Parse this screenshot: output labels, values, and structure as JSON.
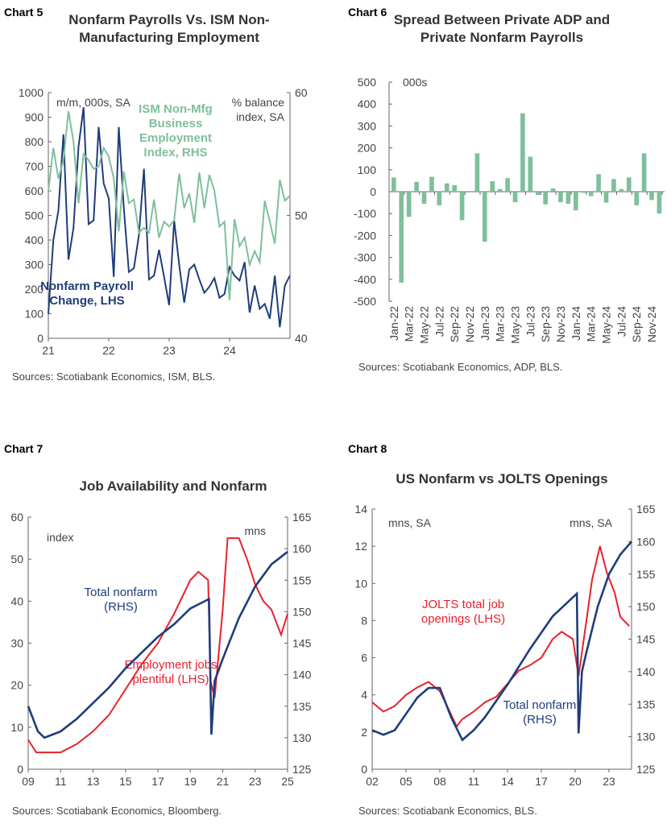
{
  "colors": {
    "navy": "#1f3d7a",
    "green": "#7fbf9a",
    "red": "#e8212b"
  },
  "chart_data": [
    {
      "id": "chart5",
      "label": "Chart 5",
      "type": "line",
      "title": [
        "Nonfarm Payrolls Vs. ISM Non-",
        "Manufacturing Employment"
      ],
      "left_unit": "m/m, 000s, SA",
      "right_unit": [
        "% balance",
        "index, SA"
      ],
      "ylim_left": [
        0,
        1000
      ],
      "yticks_left": [
        0,
        100,
        200,
        300,
        400,
        500,
        600,
        700,
        800,
        900,
        1000
      ],
      "ylim_right": [
        40,
        60
      ],
      "yticks_right": [
        40,
        50,
        60
      ],
      "xticks": [
        "21",
        "22",
        "23",
        "24"
      ],
      "xrange": [
        2021,
        2025
      ],
      "series": [
        {
          "name": "Nonfarm Payroll Change, LHS",
          "label": [
            "Nonfarm Payroll",
            "Change, LHS"
          ],
          "axis": "left",
          "color": "#1f3d7a",
          "start": 2021,
          "step": 0.0833,
          "values": [
            100,
            400,
            520,
            830,
            320,
            450,
            780,
            940,
            465,
            480,
            860,
            630,
            570,
            250,
            860,
            530,
            270,
            285,
            420,
            690,
            240,
            255,
            360,
            250,
            135,
            480,
            300,
            145,
            280,
            300,
            240,
            185,
            210,
            245,
            165,
            180,
            290,
            255,
            235,
            310,
            105,
            215,
            120,
            140,
            80,
            255,
            45,
            215,
            255
          ]
        },
        {
          "name": "ISM Non-Mfg Business Employment Index, RHS",
          "label": [
            "ISM Non-Mfg",
            "Business",
            "Employment",
            "Index, RHS"
          ],
          "axis": "right",
          "color": "#7fbf9a",
          "start": 2021,
          "step": 0.0833,
          "values": [
            52,
            55.5,
            53,
            54.5,
            58.5,
            56,
            51,
            55,
            54.5,
            53.8,
            54,
            55.5,
            54.8,
            53,
            48.7,
            53.6,
            51,
            51.3,
            48.6,
            49,
            48.6,
            51.3,
            48.2,
            49.5,
            49.1,
            49.6,
            53.4,
            50.6,
            51.8,
            49.4,
            53.5,
            50.6,
            53.3,
            52,
            49.1,
            49.5,
            43.1,
            49.7,
            47.5,
            48.2,
            46,
            47.1,
            46.2,
            51.2,
            49.5,
            47.7,
            52.9,
            51.2,
            51.6
          ]
        }
      ],
      "source": "Sources: Scotiabank Economics, ISM, BLS."
    },
    {
      "id": "chart6",
      "label": "Chart 6",
      "type": "bar",
      "title": [
        "Spread Between Private ADP and",
        "Private Nonfarm Payrolls"
      ],
      "unit": "000s",
      "ylim": [
        -500,
        500
      ],
      "yticks": [
        -500,
        -400,
        -300,
        -200,
        -100,
        0,
        100,
        200,
        300,
        400,
        500
      ],
      "categories": [
        "Jan-22",
        "Feb-22",
        "Mar-22",
        "Apr-22",
        "May-22",
        "Jun-22",
        "Jul-22",
        "Aug-22",
        "Sep-22",
        "Oct-22",
        "Nov-22",
        "Dec-22",
        "Jan-23",
        "Feb-23",
        "Mar-23",
        "Apr-23",
        "May-23",
        "Jun-23",
        "Jul-23",
        "Aug-23",
        "Sep-23",
        "Oct-23",
        "Nov-23",
        "Dec-23",
        "Jan-24",
        "Feb-24",
        "Mar-24",
        "Apr-24",
        "May-24",
        "Jun-24",
        "Jul-24",
        "Aug-24",
        "Sep-24",
        "Oct-24",
        "Nov-24",
        "Dec-24"
      ],
      "tick_labels": [
        "Jan-22",
        "Mar-22",
        "May-22",
        "Jul-22",
        "Sep-22",
        "Nov-22",
        "Jan-23",
        "Mar-23",
        "May-23",
        "Jul-23",
        "Sep-23",
        "Nov-23",
        "Jan-24",
        "Mar-24",
        "May-24",
        "Jul-24",
        "Sep-24",
        "Nov-24"
      ],
      "values": [
        65,
        -415,
        -115,
        45,
        -55,
        68,
        -62,
        38,
        30,
        -130,
        0,
        175,
        -228,
        48,
        12,
        62,
        -48,
        358,
        160,
        -15,
        -58,
        15,
        -48,
        -55,
        -85,
        -5,
        -20,
        80,
        -50,
        58,
        12,
        65,
        -62,
        175,
        -38,
        -100
      ],
      "color": "#7fbf9a",
      "source": "Sources: Scotiabank Economics, ADP, BLS."
    },
    {
      "id": "chart7",
      "label": "Chart 7",
      "type": "line",
      "title": [
        "Job Availability and Nonfarm"
      ],
      "left_unit": "index",
      "right_unit": [
        "mns"
      ],
      "ylim_left": [
        0,
        60
      ],
      "yticks_left": [
        0,
        10,
        20,
        30,
        40,
        50,
        60
      ],
      "ylim_right": [
        125,
        165
      ],
      "yticks_right": [
        125,
        130,
        135,
        140,
        145,
        150,
        155,
        160,
        165
      ],
      "xticks": [
        "09",
        "11",
        "13",
        "15",
        "17",
        "19",
        "21",
        "23",
        "25"
      ],
      "xrange": [
        2009,
        2025
      ],
      "series": [
        {
          "name": "Employment jobs plentiful (LHS)",
          "label": [
            "Employment jobs",
            "plentiful (LHS)"
          ],
          "axis": "left",
          "color": "#e8212b",
          "x": [
            2009,
            2009.5,
            2010,
            2011,
            2012,
            2013,
            2014,
            2015,
            2016,
            2017,
            2018,
            2019,
            2019.5,
            2020.1,
            2020.25,
            2020.5,
            2021,
            2021.3,
            2022,
            2022.5,
            2023,
            2023.5,
            2024,
            2024.6,
            2025
          ],
          "values": [
            7,
            4,
            4,
            4,
            6,
            9,
            13,
            19,
            25,
            30,
            37,
            45,
            47,
            45,
            21,
            17,
            38,
            55,
            55,
            50,
            44,
            40,
            38,
            32,
            37
          ]
        },
        {
          "name": "Total nonfarm (RHS)",
          "label": [
            "Total nonfarm",
            "(RHS)"
          ],
          "axis": "right",
          "color": "#1f3d7a",
          "x": [
            2009,
            2009.6,
            2010,
            2011,
            2012,
            2013,
            2014,
            2015,
            2016,
            2017,
            2018,
            2019,
            2020.15,
            2020.3,
            2020.5,
            2021,
            2022,
            2023,
            2024,
            2025
          ],
          "values": [
            135,
            131,
            130,
            131,
            133,
            135.5,
            138,
            141,
            143.5,
            146,
            148,
            150.5,
            152,
            130.5,
            139,
            142.5,
            149,
            154,
            157.5,
            159.5
          ]
        }
      ],
      "source": "Sources: Scotiabank Economics, Bloomberg."
    },
    {
      "id": "chart8",
      "label": "Chart 8",
      "type": "line",
      "title": [
        "US Nonfarm vs JOLTS Openings"
      ],
      "left_unit": "mns, SA",
      "right_unit": [
        "mns, SA"
      ],
      "ylim_left": [
        0,
        14
      ],
      "yticks_left": [
        0,
        2,
        4,
        6,
        8,
        10,
        12,
        14
      ],
      "ylim_right": [
        125,
        165
      ],
      "yticks_right": [
        125,
        130,
        135,
        140,
        145,
        150,
        155,
        160,
        165
      ],
      "xticks": [
        "02",
        "05",
        "08",
        "11",
        "14",
        "17",
        "20",
        "23"
      ],
      "xrange": [
        2002,
        2025
      ],
      "series": [
        {
          "name": "JOLTS total job openings (LHS)",
          "label": [
            "JOLTS total job",
            "openings (LHS)"
          ],
          "axis": "left",
          "color": "#e8212b",
          "x": [
            2002,
            2003,
            2004,
            2005,
            2006,
            2007,
            2008,
            2008.8,
            2009.5,
            2010,
            2011,
            2012,
            2013,
            2014,
            2015,
            2016,
            2017,
            2018,
            2018.8,
            2019.8,
            2020.3,
            2020.6,
            2021,
            2021.5,
            2022.2,
            2022.8,
            2023.5,
            2024,
            2024.8
          ],
          "values": [
            3.6,
            3.1,
            3.4,
            4.0,
            4.4,
            4.7,
            4.2,
            3.2,
            2.3,
            2.7,
            3.1,
            3.6,
            3.9,
            4.6,
            5.3,
            5.6,
            6.0,
            7.0,
            7.4,
            7.0,
            5.0,
            6.3,
            8.0,
            10.2,
            12.0,
            10.6,
            9.5,
            8.2,
            7.7
          ]
        },
        {
          "name": "Total nonfarm (RHS)",
          "label": [
            "Total nonfarm",
            "(RHS)"
          ],
          "axis": "right",
          "color": "#1f3d7a",
          "x": [
            2002,
            2003,
            2004,
            2005,
            2006,
            2007,
            2008,
            2009,
            2010,
            2011,
            2012,
            2014,
            2016,
            2018,
            2020.15,
            2020.3,
            2020.6,
            2021,
            2022,
            2023,
            2024,
            2025
          ],
          "values": [
            131,
            130.3,
            131,
            133.5,
            136,
            137.5,
            137.5,
            133,
            129.5,
            131,
            133,
            138,
            143.5,
            148.5,
            152,
            130.5,
            140,
            143,
            150,
            155,
            158,
            160
          ]
        }
      ],
      "source": "Sources: Scotiabank Economics, BLS."
    }
  ]
}
